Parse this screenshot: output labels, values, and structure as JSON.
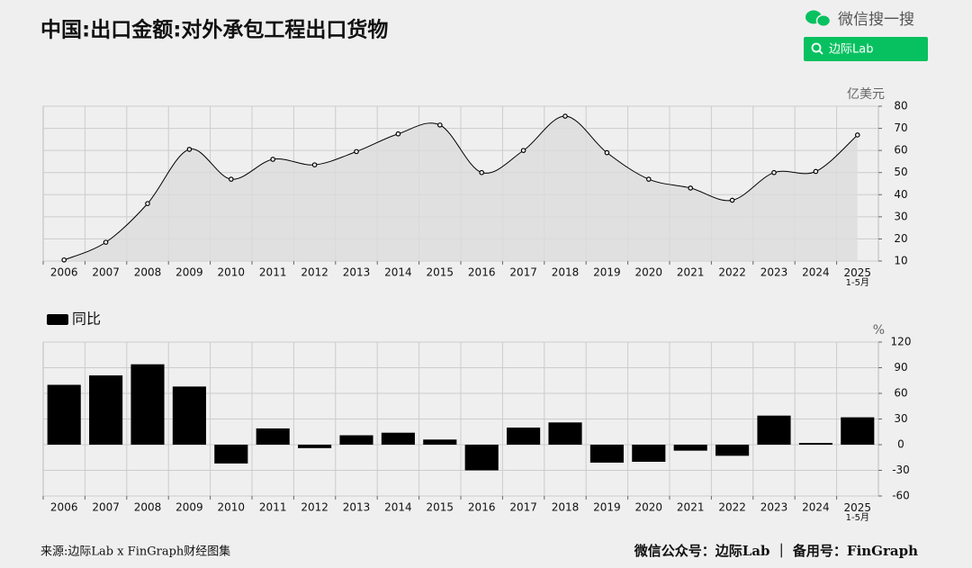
{
  "header": {
    "title": "中国:出口金额:对外承包工程出口货物",
    "search_brand": "微信搜一搜",
    "search_text": "边际Lab"
  },
  "footer": {
    "source": "来源:边际Lab x FinGraph财经图集",
    "account": "微信公众号：边际Lab ｜ 备用号：FinGraph"
  },
  "chart_data": [
    {
      "type": "line",
      "ylabel": "亿美元",
      "area": true,
      "color": "#000000",
      "area_color": "#dcdcdc",
      "grid": true,
      "categories": [
        "2006",
        "2007",
        "2008",
        "2009",
        "2010",
        "2011",
        "2012",
        "2013",
        "2014",
        "2015",
        "2016",
        "2017",
        "2018",
        "2019",
        "2020",
        "2021",
        "2022",
        "2023",
        "2024",
        "2025\n1-5月"
      ],
      "values": [
        10.5,
        18.5,
        36,
        60.5,
        47,
        56,
        53.5,
        59.5,
        67.5,
        71.5,
        50,
        60,
        75.5,
        59,
        47,
        43,
        37.5,
        50,
        50.5,
        67
      ],
      "ylim": [
        10,
        80
      ],
      "yticks": [
        10,
        20,
        30,
        40,
        50,
        60,
        70,
        80
      ]
    },
    {
      "type": "bar",
      "ylabel": "%",
      "grid": true,
      "legend": "top-left",
      "categories": [
        "2006",
        "2007",
        "2008",
        "2009",
        "2010",
        "2011",
        "2012",
        "2013",
        "2014",
        "2015",
        "2016",
        "2017",
        "2018",
        "2019",
        "2020",
        "2021",
        "2022",
        "2023",
        "2024",
        "2025\n1-5月"
      ],
      "series": [
        {
          "name": "同比",
          "color": "#000000",
          "values": [
            70,
            81,
            94,
            68,
            -22,
            19,
            -4,
            11,
            14,
            6,
            -30,
            20,
            26,
            -21,
            -20,
            -7,
            -13,
            34,
            2,
            32
          ]
        }
      ],
      "ylim": [
        -60,
        120
      ],
      "yticks": [
        -60,
        -30,
        0,
        30,
        60,
        90,
        120
      ]
    }
  ]
}
